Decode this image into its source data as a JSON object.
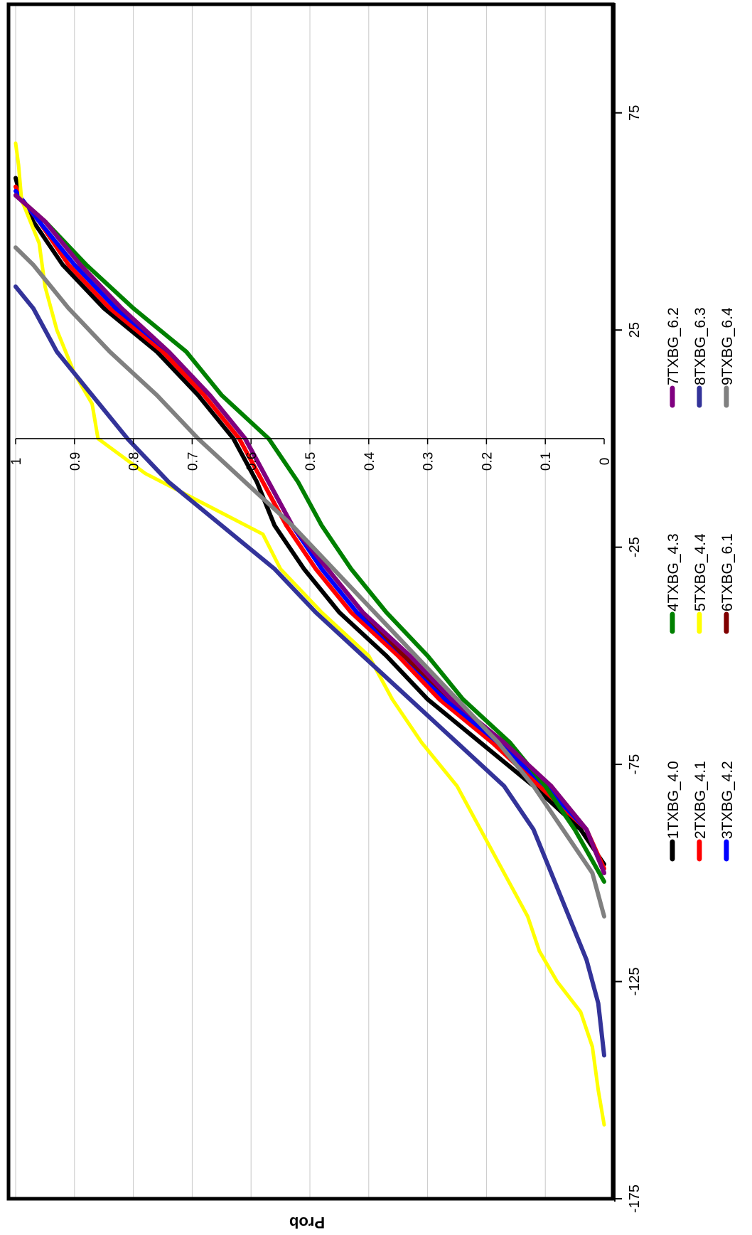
{
  "chart_data": {
    "type": "line",
    "title": "",
    "xlabel": "",
    "ylabel": "Prob",
    "xlim": [
      -175,
      100
    ],
    "ylim": [
      0,
      1
    ],
    "xticks": [
      "-175",
      "-125",
      "-75",
      "-25",
      "25",
      "75"
    ],
    "xtick_values": [
      -175,
      -125,
      -75,
      -25,
      25,
      75
    ],
    "yticks": [
      "0",
      "0.1",
      "0.2",
      "0.3",
      "0.4",
      "0.5",
      "0.6",
      "0.7",
      "0.8",
      "0.9",
      "1"
    ],
    "ytick_values": [
      0,
      0.1,
      0.2,
      0.3,
      0.4,
      0.5,
      0.6,
      0.7,
      0.8,
      0.9,
      1
    ],
    "grid": true,
    "orientation": "rotated-90-clockwise",
    "legend_position": "bottom",
    "series": [
      {
        "name": "1TXBG_4.0",
        "color": "#000000",
        "x": [
          -98,
          -90,
          -80,
          -70,
          -60,
          -50,
          -40,
          -30,
          -20,
          -10,
          0,
          10,
          20,
          30,
          40,
          50,
          55,
          60
        ],
        "y": [
          0.0,
          0.04,
          0.12,
          0.21,
          0.3,
          0.37,
          0.45,
          0.51,
          0.56,
          0.59,
          0.63,
          0.69,
          0.76,
          0.85,
          0.92,
          0.97,
          0.99,
          1.0
        ]
      },
      {
        "name": "2TXBG_4.1",
        "color": "#ff0000",
        "x": [
          -99,
          -90,
          -80,
          -70,
          -60,
          -50,
          -40,
          -30,
          -20,
          -10,
          0,
          10,
          20,
          30,
          40,
          50,
          55,
          58
        ],
        "y": [
          0.0,
          0.03,
          0.11,
          0.19,
          0.28,
          0.35,
          0.43,
          0.49,
          0.54,
          0.58,
          0.62,
          0.68,
          0.75,
          0.84,
          0.91,
          0.96,
          0.99,
          1.0
        ]
      },
      {
        "name": "3TXBG_4.2",
        "color": "#0000ff",
        "x": [
          -100,
          -90,
          -80,
          -70,
          -60,
          -50,
          -40,
          -30,
          -20,
          -10,
          0,
          10,
          20,
          30,
          40,
          50,
          57
        ],
        "y": [
          0.0,
          0.03,
          0.1,
          0.18,
          0.27,
          0.34,
          0.42,
          0.48,
          0.53,
          0.57,
          0.61,
          0.67,
          0.74,
          0.83,
          0.9,
          0.96,
          1.0
        ]
      },
      {
        "name": "4TXBG_4.3",
        "color": "#008000",
        "x": [
          -102,
          -90,
          -80,
          -70,
          -60,
          -50,
          -40,
          -30,
          -20,
          -10,
          0,
          10,
          20,
          30,
          40,
          50,
          56
        ],
        "y": [
          0.0,
          0.05,
          0.1,
          0.16,
          0.24,
          0.3,
          0.37,
          0.43,
          0.48,
          0.52,
          0.57,
          0.65,
          0.71,
          0.8,
          0.88,
          0.95,
          1.0
        ]
      },
      {
        "name": "5TXBG_4.4",
        "color": "#ffff00",
        "x": [
          -158,
          -150,
          -140,
          -132,
          -125,
          -118,
          -110,
          -100,
          -90,
          -80,
          -70,
          -60,
          -50,
          -40,
          -30,
          -22,
          -15,
          -8,
          0,
          8,
          15,
          25,
          35,
          45,
          55,
          63,
          68
        ],
        "y": [
          0.0,
          0.01,
          0.02,
          0.04,
          0.08,
          0.11,
          0.13,
          0.17,
          0.21,
          0.25,
          0.31,
          0.36,
          0.4,
          0.48,
          0.55,
          0.58,
          0.68,
          0.78,
          0.86,
          0.87,
          0.9,
          0.93,
          0.95,
          0.96,
          0.99,
          0.995,
          1.0
        ]
      },
      {
        "name": "6TXBG_6.1",
        "color": "#800000",
        "x": [
          -100,
          -90,
          -80,
          -70,
          -60,
          -50,
          -40,
          -30,
          -20,
          -10,
          0,
          10,
          20,
          30,
          40,
          50,
          56
        ],
        "y": [
          0.0,
          0.03,
          0.09,
          0.17,
          0.26,
          0.34,
          0.41,
          0.47,
          0.53,
          0.57,
          0.61,
          0.67,
          0.74,
          0.82,
          0.89,
          0.95,
          1.0
        ]
      },
      {
        "name": "7TXBG_6.2",
        "color": "#800080",
        "x": [
          -100,
          -90,
          -80,
          -70,
          -60,
          -50,
          -40,
          -30,
          -20,
          -10,
          0,
          10,
          20,
          30,
          40,
          50,
          56
        ],
        "y": [
          0.0,
          0.03,
          0.09,
          0.17,
          0.26,
          0.33,
          0.41,
          0.47,
          0.53,
          0.57,
          0.61,
          0.67,
          0.74,
          0.82,
          0.89,
          0.95,
          1.0
        ]
      },
      {
        "name": "8TXBG_6.3",
        "color": "#333399",
        "x": [
          -142,
          -130,
          -120,
          -110,
          -100,
          -90,
          -80,
          -70,
          -60,
          -50,
          -40,
          -30,
          -20,
          -10,
          0,
          10,
          20,
          30,
          35
        ],
        "y": [
          0.0,
          0.01,
          0.03,
          0.06,
          0.09,
          0.12,
          0.17,
          0.25,
          0.33,
          0.41,
          0.49,
          0.56,
          0.65,
          0.74,
          0.81,
          0.87,
          0.93,
          0.97,
          1.0
        ]
      },
      {
        "name": "9TXBG_6.4",
        "color": "#808080",
        "x": [
          -110,
          -100,
          -90,
          -80,
          -70,
          -60,
          -50,
          -40,
          -30,
          -20,
          -10,
          0,
          10,
          20,
          30,
          40,
          44
        ],
        "y": [
          0.0,
          0.02,
          0.07,
          0.12,
          0.18,
          0.25,
          0.32,
          0.39,
          0.46,
          0.53,
          0.61,
          0.69,
          0.76,
          0.84,
          0.91,
          0.97,
          1.0
        ]
      }
    ]
  }
}
